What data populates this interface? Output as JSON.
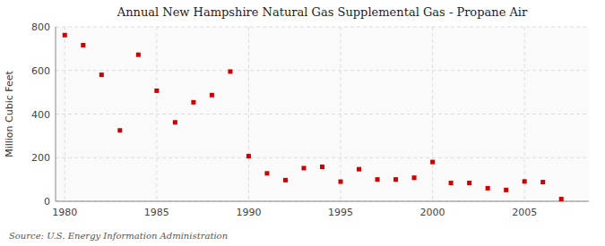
{
  "chart_data": {
    "type": "scatter",
    "title": "Annual New Hampshire Natural Gas Supplemental Gas - Propane Air",
    "ylabel": "Million Cubic Feet",
    "source": "Source: U.S. Energy Information Administration",
    "color": "#cc0000",
    "marker": "square",
    "grid": true,
    "xlim": [
      1979.5,
      2008.5
    ],
    "ylim": [
      0,
      800
    ],
    "xticks": [
      1980,
      1985,
      1990,
      1995,
      2000,
      2005
    ],
    "yticks": [
      0,
      200,
      400,
      600,
      800
    ],
    "x": [
      1980,
      1981,
      1982,
      1983,
      1984,
      1985,
      1986,
      1987,
      1988,
      1989,
      1990,
      1991,
      1992,
      1993,
      1994,
      1995,
      1996,
      1997,
      1998,
      1999,
      2000,
      2001,
      2002,
      2003,
      2004,
      2005,
      2006,
      2007
    ],
    "values": [
      762,
      716,
      580,
      325,
      672,
      507,
      362,
      454,
      487,
      595,
      207,
      128,
      97,
      152,
      158,
      90,
      147,
      100,
      100,
      108,
      180,
      84,
      84,
      60,
      52,
      91,
      88,
      10
    ]
  }
}
